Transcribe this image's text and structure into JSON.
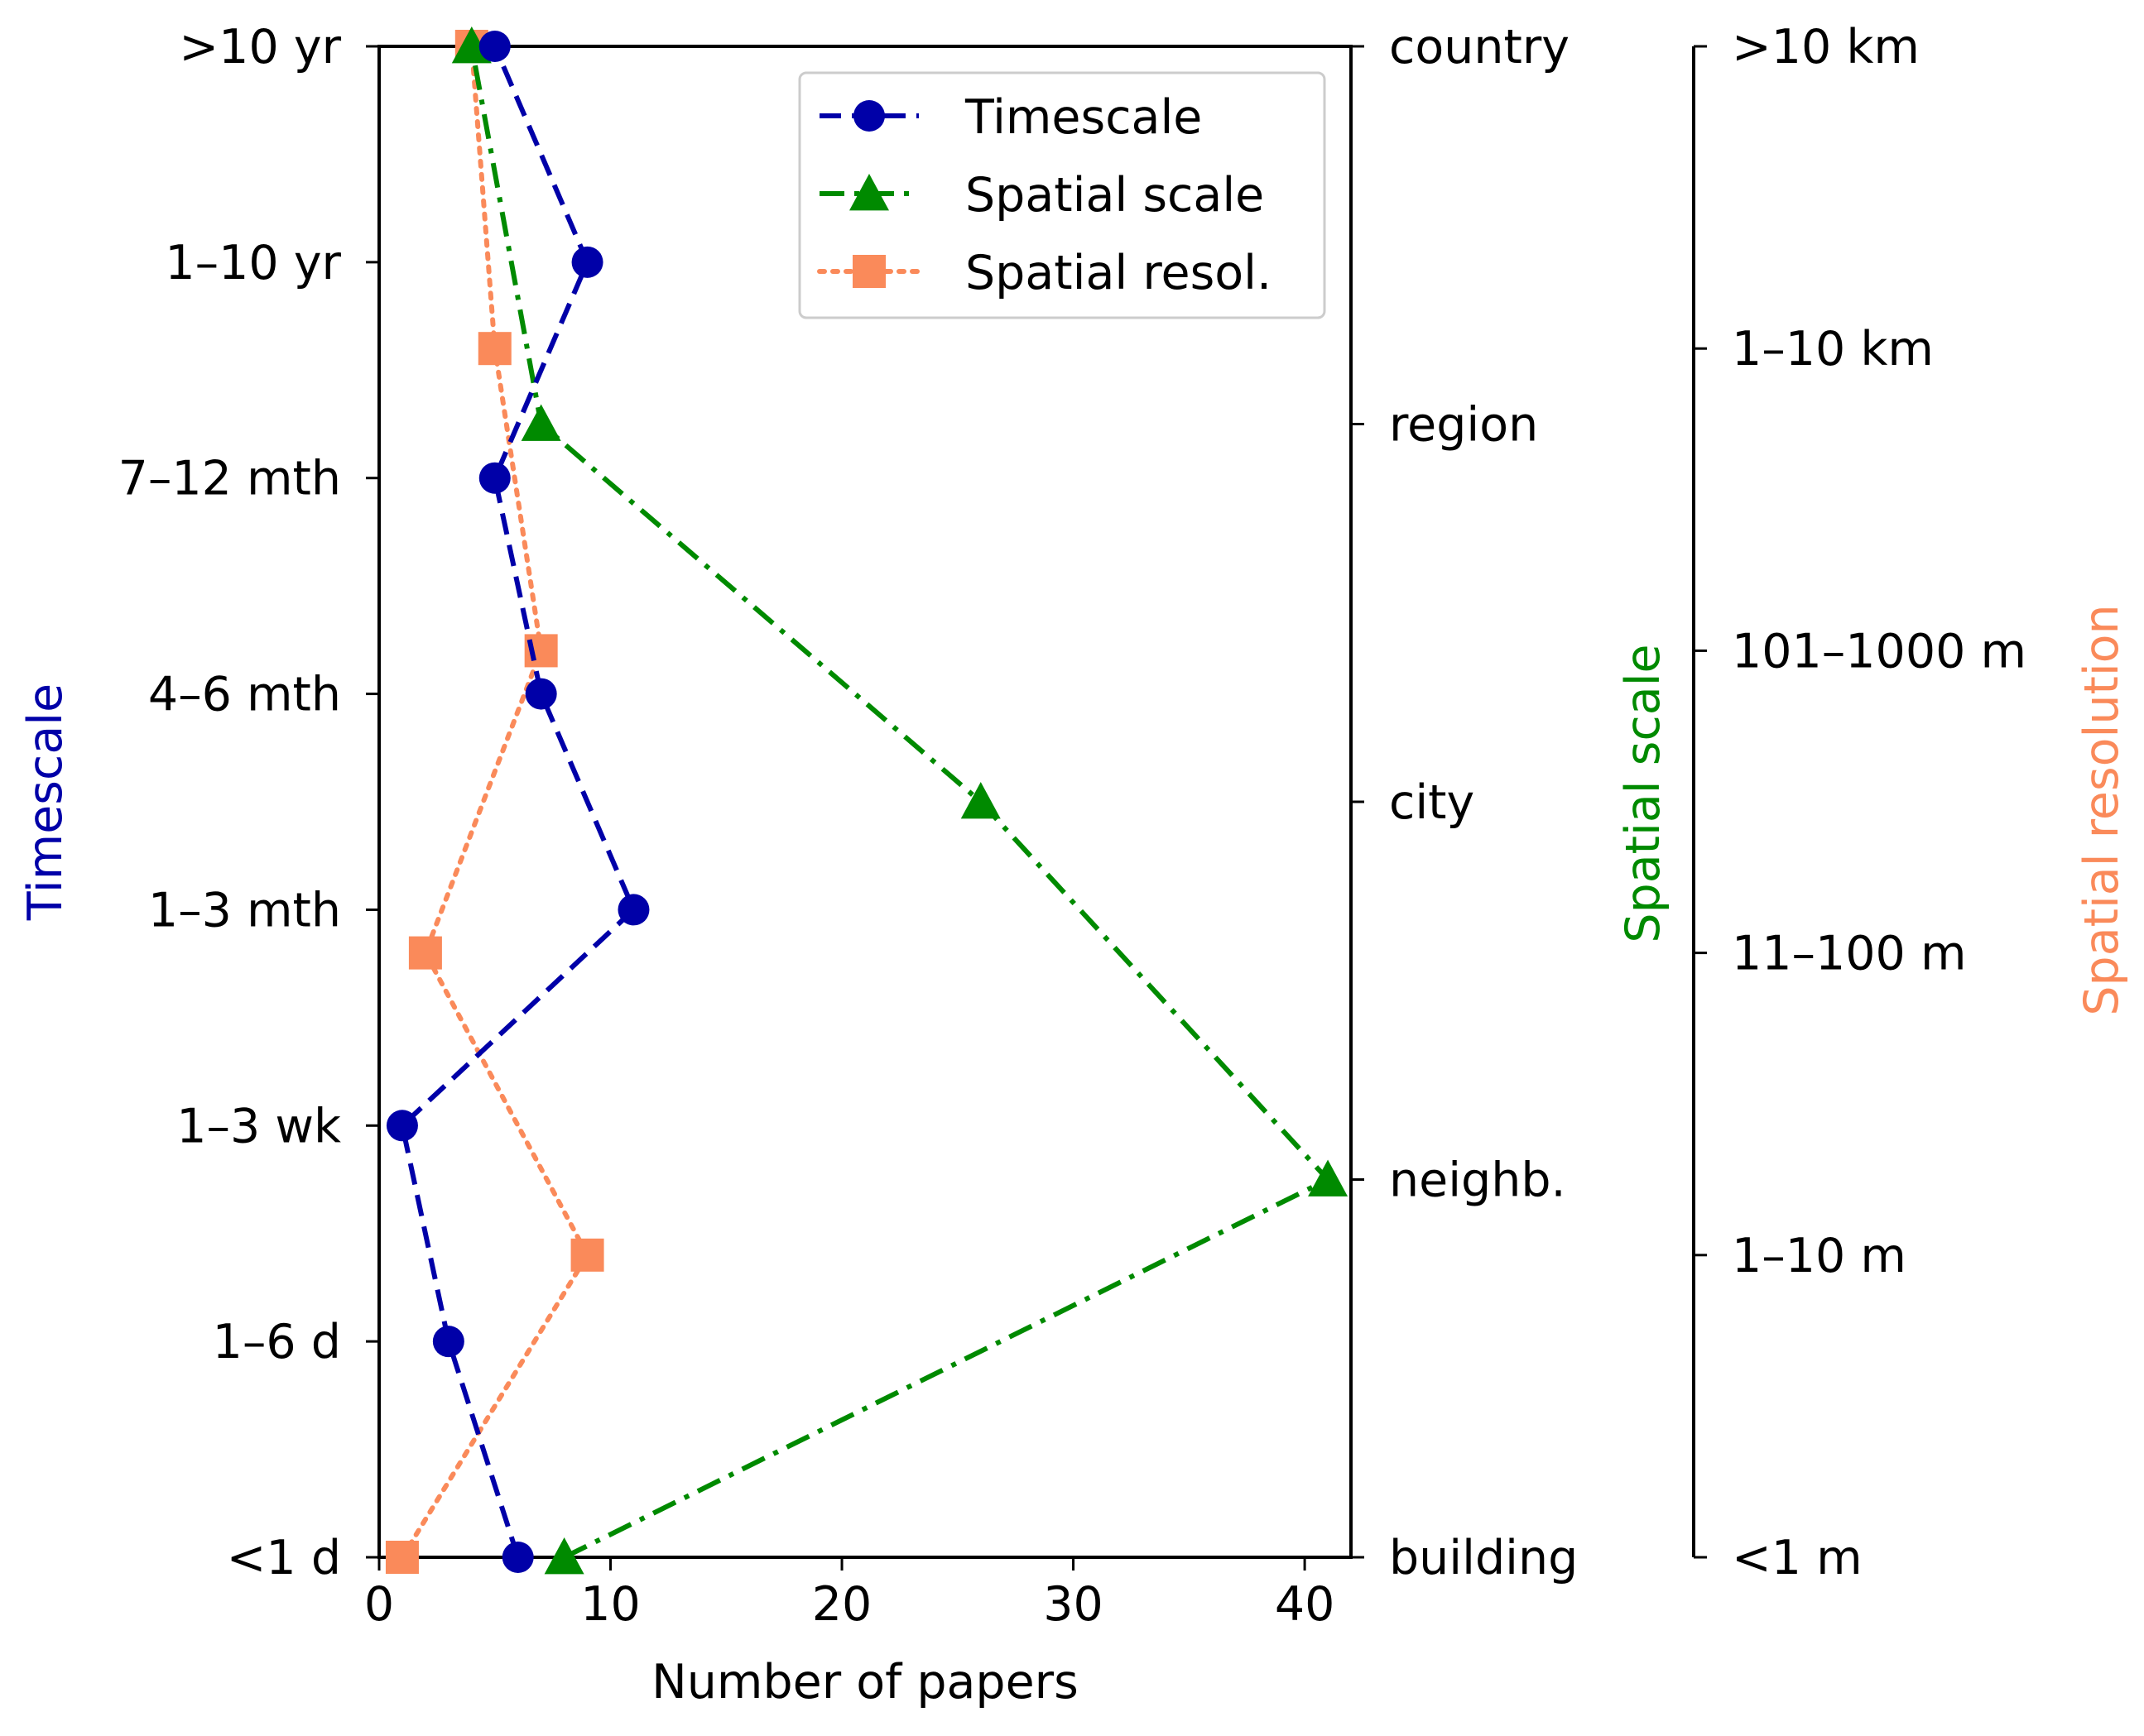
{
  "chart_data": {
    "type": "line",
    "xlabel": "Number of papers",
    "x_ticks": [
      0,
      10,
      20,
      30,
      40
    ],
    "xlim": [
      0,
      42
    ],
    "legend_position": "top-right",
    "colors": {
      "timescale": "#0000a8",
      "spatial_scale": "#008a00",
      "spatial_resol": "#fa8a5a"
    },
    "axes": {
      "timescale": {
        "label": "Timescale",
        "categories": [
          "<1 d",
          "1–6 d",
          "1–3 wk",
          "1–3 mth",
          "4–6 mth",
          "7–12 mth",
          "1–10 yr",
          ">10 yr"
        ]
      },
      "spatial_scale": {
        "label": "Spatial scale",
        "categories": [
          "building",
          "neighb.",
          "city",
          "region",
          "country"
        ]
      },
      "spatial_resol": {
        "label": "Spatial resolution",
        "categories": [
          "<1 m",
          "1–10 m",
          "11–100 m",
          "101–1000 m",
          "1–10 km",
          ">10 km"
        ]
      }
    },
    "series": [
      {
        "key": "timescale",
        "name": "Timescale",
        "marker": "circle",
        "line_style": "dashed",
        "values": [
          6,
          3,
          1,
          11,
          7,
          5,
          9,
          5
        ]
      },
      {
        "key": "spatial_scale",
        "name": "Spatial scale",
        "marker": "triangle",
        "line_style": "dashdot",
        "values": [
          8,
          41,
          26,
          7,
          4
        ]
      },
      {
        "key": "spatial_resol",
        "name": "Spatial resol.",
        "marker": "square",
        "line_style": "dotted",
        "values": [
          1,
          9,
          2,
          7,
          5,
          4
        ]
      }
    ]
  }
}
